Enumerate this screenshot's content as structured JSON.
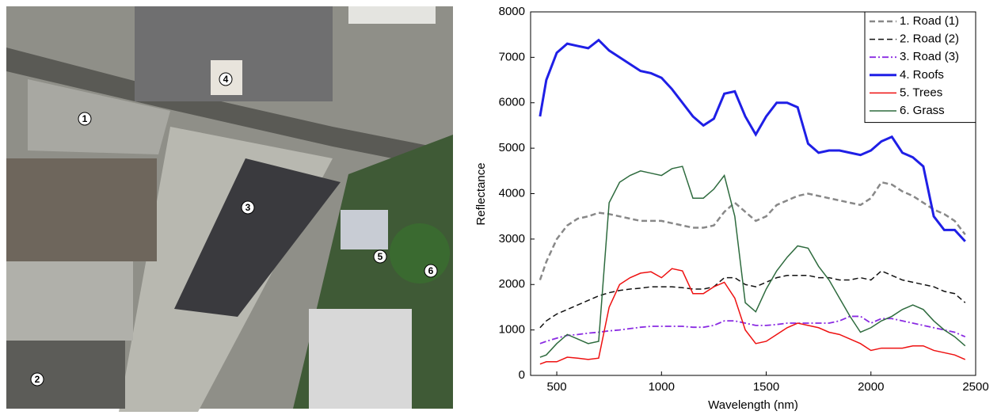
{
  "image": {
    "markers": [
      "1",
      "2",
      "3",
      "4",
      "5",
      "6"
    ]
  },
  "chart_data": {
    "type": "line",
    "xlabel": "Wavelength (nm)",
    "ylabel": "Reflectance",
    "x": [
      420,
      450,
      500,
      550,
      600,
      650,
      700,
      750,
      800,
      850,
      900,
      950,
      1000,
      1050,
      1100,
      1150,
      1200,
      1250,
      1300,
      1350,
      1400,
      1450,
      1500,
      1550,
      1600,
      1650,
      1700,
      1750,
      1800,
      1850,
      1900,
      1950,
      2000,
      2050,
      2100,
      2150,
      2200,
      2250,
      2300,
      2350,
      2400,
      2450
    ],
    "xlim": [
      375,
      2500
    ],
    "xticks": [
      500,
      1000,
      1500,
      2000,
      2500
    ],
    "ylim": [
      0,
      8000
    ],
    "yticks": [
      0,
      1000,
      2000,
      3000,
      4000,
      5000,
      6000,
      7000,
      8000
    ],
    "grid": false,
    "legend": "upper right",
    "series": [
      {
        "name": "1. Road (1)",
        "color": "#888888",
        "linestyle": "dashed",
        "linewidth": 2.5,
        "values": [
          2100,
          2500,
          3000,
          3300,
          3450,
          3500,
          3580,
          3550,
          3500,
          3450,
          3400,
          3400,
          3400,
          3350,
          3300,
          3250,
          3250,
          3300,
          3600,
          3800,
          3600,
          3400,
          3500,
          3750,
          3850,
          3950,
          4000,
          3950,
          3900,
          3850,
          3800,
          3750,
          3900,
          4250,
          4200,
          4050,
          3950,
          3800,
          3650,
          3550,
          3400,
          3100
        ]
      },
      {
        "name": "2. Road (2)",
        "color": "#111111",
        "linestyle": "dashed",
        "linewidth": 1.5,
        "values": [
          1050,
          1200,
          1350,
          1450,
          1550,
          1650,
          1750,
          1820,
          1870,
          1900,
          1920,
          1950,
          1950,
          1950,
          1930,
          1900,
          1900,
          1950,
          2150,
          2150,
          2000,
          1950,
          2050,
          2150,
          2200,
          2200,
          2200,
          2150,
          2150,
          2100,
          2100,
          2150,
          2100,
          2300,
          2200,
          2100,
          2050,
          2000,
          1950,
          1850,
          1800,
          1600
        ]
      },
      {
        "name": "3. Road (3)",
        "color": "#8a2be2",
        "linestyle": "dashdot",
        "linewidth": 1.8,
        "values": [
          700,
          750,
          820,
          880,
          900,
          930,
          950,
          980,
          1000,
          1030,
          1060,
          1080,
          1080,
          1080,
          1080,
          1060,
          1060,
          1100,
          1200,
          1200,
          1150,
          1100,
          1100,
          1120,
          1150,
          1150,
          1150,
          1150,
          1150,
          1200,
          1300,
          1300,
          1150,
          1250,
          1250,
          1200,
          1150,
          1100,
          1050,
          1000,
          950,
          850
        ]
      },
      {
        "name": "4. Roofs",
        "color": "#1f1fe6",
        "linestyle": "solid",
        "linewidth": 3,
        "values": [
          5700,
          6500,
          7100,
          7300,
          7250,
          7200,
          7380,
          7150,
          7000,
          6850,
          6700,
          6650,
          6550,
          6300,
          6000,
          5700,
          5500,
          5650,
          6200,
          6250,
          5700,
          5300,
          5700,
          6000,
          6000,
          5900,
          5100,
          4900,
          4950,
          4950,
          4900,
          4850,
          4950,
          5150,
          5250,
          4900,
          4800,
          4600,
          3500,
          3200,
          3200,
          2950
        ]
      },
      {
        "name": "5. Trees",
        "color": "#ee1111",
        "linestyle": "solid",
        "linewidth": 1.5,
        "values": [
          250,
          300,
          300,
          400,
          380,
          350,
          380,
          1500,
          2000,
          2150,
          2250,
          2280,
          2150,
          2350,
          2300,
          1800,
          1800,
          1950,
          2050,
          1700,
          1000,
          700,
          750,
          900,
          1050,
          1150,
          1100,
          1050,
          950,
          900,
          800,
          700,
          550,
          600,
          600,
          600,
          650,
          650,
          550,
          500,
          450,
          350
        ]
      },
      {
        "name": "6. Grass",
        "color": "#2e6b3e",
        "linestyle": "solid",
        "linewidth": 1.5,
        "values": [
          400,
          450,
          700,
          900,
          800,
          700,
          750,
          3800,
          4250,
          4400,
          4500,
          4450,
          4400,
          4550,
          4600,
          3900,
          3900,
          4100,
          4400,
          3500,
          1600,
          1400,
          1900,
          2300,
          2600,
          2850,
          2800,
          2400,
          2100,
          1700,
          1300,
          950,
          1050,
          1200,
          1300,
          1450,
          1550,
          1450,
          1200,
          1000,
          850,
          650
        ]
      }
    ]
  }
}
